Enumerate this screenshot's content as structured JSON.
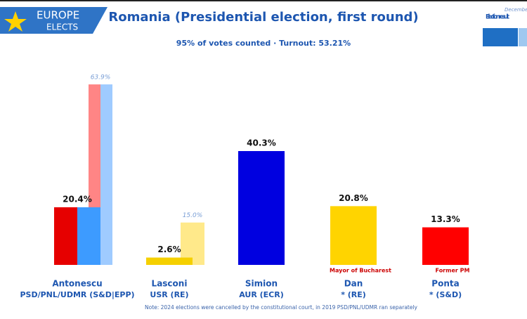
{
  "header": {
    "logo": [
      "EUROPE",
      "ELECTS"
    ]
  },
  "chart_data": {
    "type": "bar",
    "title": "Romania (Presidential election, first round)",
    "subtitle": "95% of votes counted · Turnout: 53.21%",
    "categories": [
      "Antonescu",
      "Lasconi",
      "Simion",
      "Dan",
      "Ponta"
    ],
    "parties": [
      "PSD/PNL/UDMR (S&D|EPP)",
      "USR (RE)",
      "AUR (ECR)",
      "* (RE)",
      "* (S&D)"
    ],
    "annotations": [
      null,
      null,
      null,
      "Mayor of Bucharest",
      "Former PM"
    ],
    "series": [
      {
        "name": "Election result",
        "color": "#1f6fc4",
        "colors": [
          [
            "#e60000",
            "#3d9bff"
          ],
          [
            "#f5d000"
          ],
          [
            "#0000e0"
          ],
          [
            "#ffd400"
          ],
          [
            "#ff0000"
          ]
        ],
        "values": [
          20.4,
          2.6,
          40.3,
          20.8,
          13.3
        ],
        "value_labels": [
          "20.4%",
          "2.6%",
          "40.3%",
          "20.8%",
          "13.3%"
        ]
      },
      {
        "name": "December election result",
        "color": "#9fc8f0",
        "colors": [
          [
            "#ff8585",
            "#9fcbff"
          ],
          [
            "#ffe98a"
          ],
          null,
          null,
          null
        ],
        "values": [
          63.9,
          15.0,
          null,
          null,
          null
        ],
        "value_labels": [
          "63.9%",
          "15.0%",
          null,
          null,
          null
        ]
      }
    ],
    "note": "Note: 2024 elections were cancelled by the constitutional court, in 2019 PSD/PNL/UDMR ran separately"
  }
}
